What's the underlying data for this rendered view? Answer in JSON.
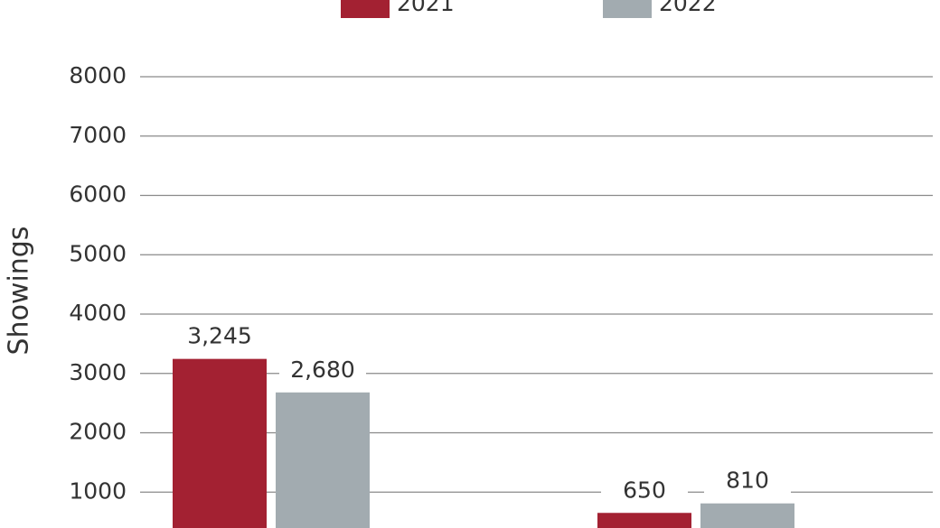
{
  "chart_data": {
    "type": "bar",
    "y_label": "Showings",
    "categories": [
      null,
      null
    ],
    "series": [
      {
        "name": "2021",
        "color": "#a32132",
        "values": [
          3245,
          650
        ],
        "value_labels": [
          "3,245",
          "650"
        ]
      },
      {
        "name": "2022",
        "color": "#a2abb0",
        "values": [
          2680,
          810
        ],
        "value_labels": [
          "2,680",
          "810"
        ]
      }
    ],
    "ylim": [
      0,
      8000
    ],
    "yticks": [
      1000,
      2000,
      3000,
      4000,
      5000,
      6000,
      7000,
      8000
    ],
    "grid": true
  }
}
